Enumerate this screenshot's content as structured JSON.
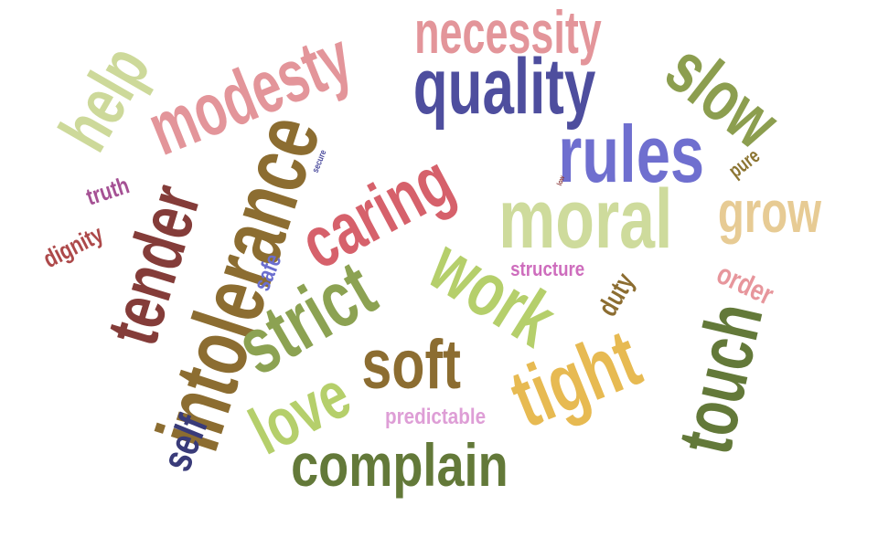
{
  "words": [
    {
      "text": "quality",
      "color": "#4e4e9e"
    },
    {
      "text": "necessity",
      "color": "#e3959a"
    },
    {
      "text": "modesty",
      "color": "#e3959a"
    },
    {
      "text": "help",
      "color": "#cdd99a"
    },
    {
      "text": "slow",
      "color": "#8c9e4f"
    },
    {
      "text": "rules",
      "color": "#6f6fcf"
    },
    {
      "text": "pure",
      "color": "#8c7532"
    },
    {
      "text": "secure",
      "color": "#4e4e9e"
    },
    {
      "text": "low",
      "color": "#8c3a3a"
    },
    {
      "text": "intolerance",
      "color": "#8c6d31"
    },
    {
      "text": "caring",
      "color": "#d6616b"
    },
    {
      "text": "moral",
      "color": "#cedb9c"
    },
    {
      "text": "grow",
      "color": "#e7cb94"
    },
    {
      "text": "truth",
      "color": "#a55194"
    },
    {
      "text": "dignity",
      "color": "#ad494a"
    },
    {
      "text": "tender",
      "color": "#843c39"
    },
    {
      "text": "safe",
      "color": "#6b6ecf"
    },
    {
      "text": "strict",
      "color": "#8ca252"
    },
    {
      "text": "work",
      "color": "#b5cf6b"
    },
    {
      "text": "structure",
      "color": "#ce6dbd"
    },
    {
      "text": "order",
      "color": "#e7969c"
    },
    {
      "text": "duty",
      "color": "#8c6d31"
    },
    {
      "text": "soft",
      "color": "#8c6d31"
    },
    {
      "text": "tight",
      "color": "#e7ba52"
    },
    {
      "text": "touch",
      "color": "#637939"
    },
    {
      "text": "love",
      "color": "#b5cf6b"
    },
    {
      "text": "self",
      "color": "#393b79"
    },
    {
      "text": "predictable",
      "color": "#de9ed6"
    },
    {
      "text": "complain",
      "color": "#637939"
    }
  ]
}
